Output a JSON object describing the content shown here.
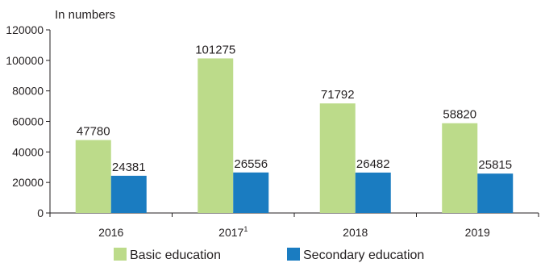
{
  "chart_data": {
    "type": "bar",
    "ylabel": "In numbers",
    "categories": [
      "2016",
      "2017",
      "2018",
      "2019"
    ],
    "category_footnotes": [
      "",
      "1",
      "",
      ""
    ],
    "ylim": [
      0,
      120000
    ],
    "yticks": [
      0,
      20000,
      40000,
      60000,
      80000,
      100000,
      120000
    ],
    "grid": false,
    "legend_position": "bottom",
    "series": [
      {
        "name": "Basic education",
        "color": "#bcdb8a",
        "values": [
          47780,
          101275,
          71792,
          58820
        ]
      },
      {
        "name": "Secondary education",
        "color": "#1a7cc1",
        "values": [
          24381,
          26556,
          26482,
          25815
        ]
      }
    ]
  }
}
